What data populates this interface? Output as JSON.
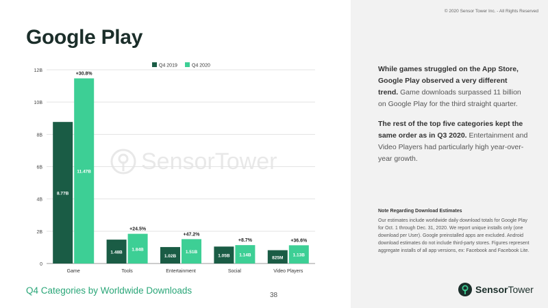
{
  "copyright": "© 2020 Sensor Tower Inc. - All Rights Reserved",
  "title": "Google Play",
  "subtitle": "Q4 Categories by Worldwide Downloads",
  "page_number": "38",
  "brand": {
    "bold": "Sensor",
    "light": "Tower",
    "watermark": "SensorTower"
  },
  "right_panel": {
    "para1_bold": "While games struggled on the App Store, Google Play observed a very different trend.",
    "para1_text": " Game downloads surpassed 11 billion on Google Play for the third straight quarter.",
    "para2_bold": "The rest of the top five categories kept the same order as in Q3 2020.",
    "para2_text": " Entertainment and Video Players had particularly high year-over-year growth.",
    "note_title": "Note Regarding Download Estimates",
    "note_body": "Our estimates include worldwide daily download totals for Google Play for Oct. 1 through Dec. 31, 2020. We report unique installs only (one download per User). Google preinstalled apps are excluded. Android download estimates do not include third-party stores. Figures represent aggregate installs of all app versions, ex: Facebook and Facebook Lite."
  },
  "colors": {
    "q4_2019": "#1a5c45",
    "q4_2020": "#3dcf95",
    "accent": "#2aa678"
  },
  "chart_data": {
    "type": "bar",
    "categories": [
      "Game",
      "Tools",
      "Entertainment",
      "Social",
      "Video Players"
    ],
    "series": [
      {
        "name": "Q4 2019",
        "values": [
          8.77,
          1.48,
          1.02,
          1.05,
          0.825
        ],
        "labels": [
          "8.77B",
          "1.48B",
          "1.02B",
          "1.05B",
          "825M"
        ]
      },
      {
        "name": "Q4 2020",
        "values": [
          11.47,
          1.84,
          1.51,
          1.14,
          1.13
        ],
        "labels": [
          "11.47B",
          "1.84B",
          "1.51B",
          "1.14B",
          "1.13B"
        ]
      }
    ],
    "growth_labels": [
      "+30.8%",
      "+24.5%",
      "+47.2%",
      "+8.7%",
      "+36.6%"
    ],
    "y_ticks": [
      "0",
      "2B",
      "4B",
      "6B",
      "8B",
      "10B",
      "12B"
    ],
    "ylim": [
      0,
      12
    ],
    "legend_position": "top",
    "grid": true
  }
}
